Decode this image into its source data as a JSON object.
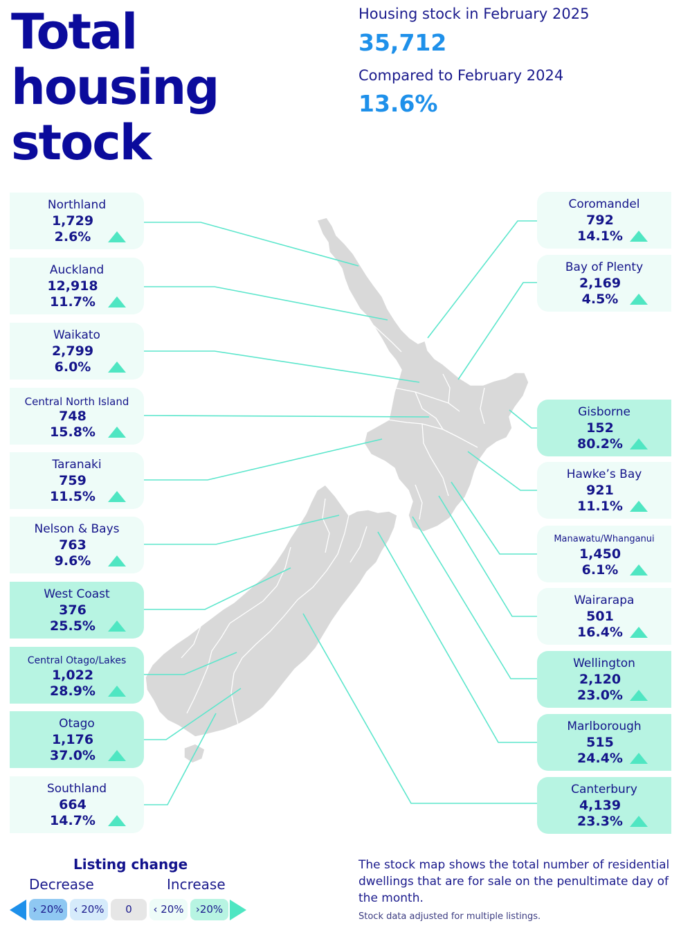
{
  "title": "Total housing stock",
  "summary": {
    "stock_label": "Housing stock in February 2025",
    "stock_value": "35,712",
    "compare_label": "Compared to February 2024",
    "compare_value": "13.6%"
  },
  "regions_left": [
    {
      "name": "Northland",
      "count": "1,729",
      "change": "2.6%",
      "icon": "up-triangle-icon"
    },
    {
      "name": "Auckland",
      "count": "12,918",
      "change": "11.7%",
      "icon": "up-triangle-icon"
    },
    {
      "name": "Waikato",
      "count": "2,799",
      "change": "6.0%",
      "icon": "up-triangle-icon"
    },
    {
      "name": "Central North Island",
      "count": "748",
      "change": "15.8%",
      "icon": "up-triangle-icon"
    },
    {
      "name": "Taranaki",
      "count": "759",
      "change": "11.5%",
      "icon": "up-triangle-icon"
    },
    {
      "name": "Nelson & Bays",
      "count": "763",
      "change": "9.6%",
      "icon": "up-triangle-icon"
    },
    {
      "name": "West Coast",
      "count": "376",
      "change": "25.5%",
      "icon": "up-triangle-icon"
    },
    {
      "name": "Central Otago/Lakes",
      "count": "1,022",
      "change": "28.9%",
      "icon": "up-triangle-icon"
    },
    {
      "name": "Otago",
      "count": "1,176",
      "change": "37.0%",
      "icon": "up-triangle-icon"
    },
    {
      "name": "Southland",
      "count": "664",
      "change": "14.7%",
      "icon": "up-triangle-icon"
    }
  ],
  "regions_right": [
    {
      "name": "Coromandel",
      "count": "792",
      "change": "14.1%",
      "icon": "up-triangle-icon"
    },
    {
      "name": "Bay of Plenty",
      "count": "2,169",
      "change": "4.5%",
      "icon": "up-triangle-icon"
    },
    {
      "name": "Gisborne",
      "count": "152",
      "change": "80.2%",
      "icon": "up-triangle-icon"
    },
    {
      "name": "Hawke’s Bay",
      "count": "921",
      "change": "11.1%",
      "icon": "up-triangle-icon"
    },
    {
      "name": "Manawatu/Whanganui",
      "count": "1,450",
      "change": "6.1%",
      "icon": "up-triangle-icon"
    },
    {
      "name": "Wairarapa",
      "count": "501",
      "change": "16.4%",
      "icon": "up-triangle-icon"
    },
    {
      "name": "Wellington",
      "count": "2,120",
      "change": "23.0%",
      "icon": "up-triangle-icon"
    },
    {
      "name": "Marlborough",
      "count": "515",
      "change": "24.4%",
      "icon": "up-triangle-icon"
    },
    {
      "name": "Canterbury",
      "count": "4,139",
      "change": "23.3%",
      "icon": "up-triangle-icon"
    }
  ],
  "legend": {
    "title": "Listing change",
    "decrease_label": "Decrease",
    "increase_label": "Increase",
    "items": [
      "› 20%",
      "‹ 20%",
      "0",
      "‹ 20%",
      "›20%"
    ]
  },
  "footnote": "The stock map shows the total number of residential dwellings that are for sale on the penultimate day of the month.",
  "footnote_small": "Stock data adjusted for multiple listings.",
  "colors": {
    "title": "#0b0b9c",
    "value": "#1e90ea",
    "connector": "#5ce6cc",
    "increase_arrow": "#4fe6c2",
    "decrease_arrow": "#1e90ea",
    "map_fill": "#d9d9d9"
  }
}
